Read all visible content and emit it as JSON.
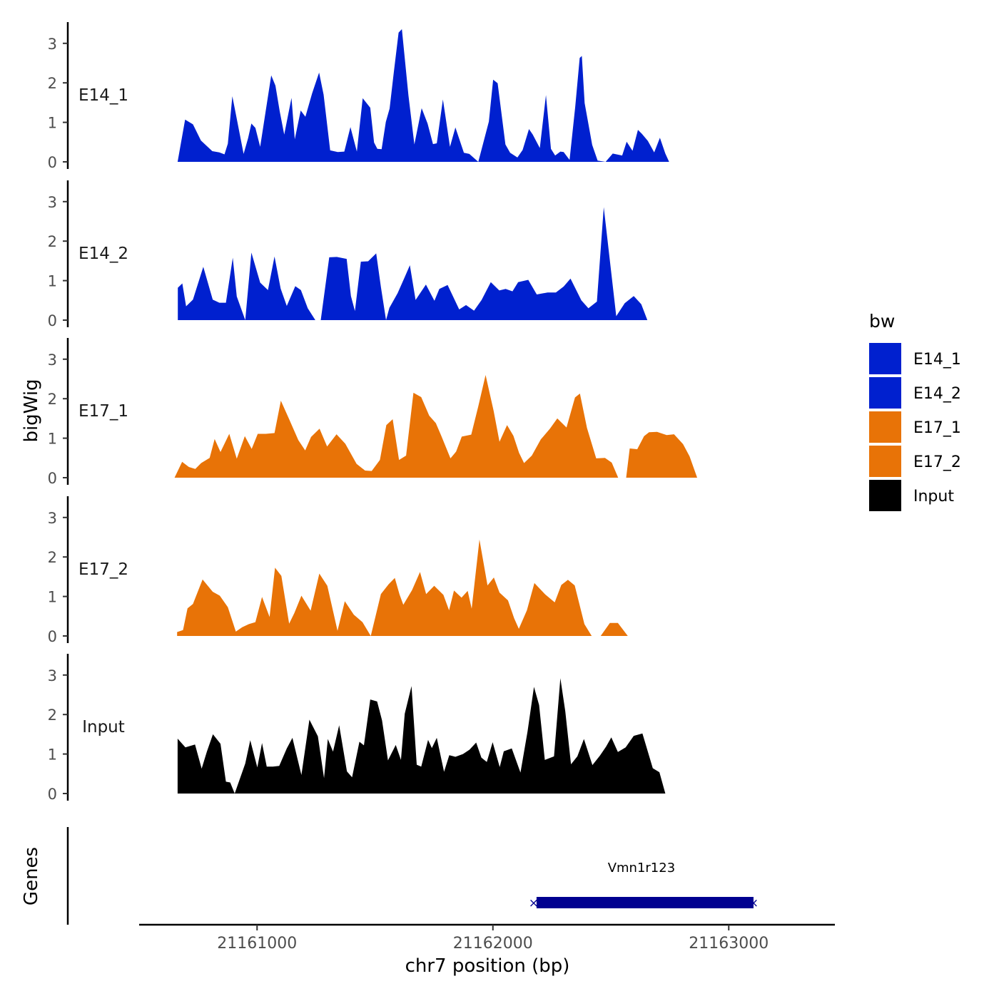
{
  "colors": {
    "E14": "#0020CF",
    "E17": "#E87307",
    "Input": "#000000",
    "gene": "#000090",
    "axis": "#000000",
    "tick_label": "#4D4D4D"
  },
  "chart_data": {
    "type": "area",
    "title": "",
    "ylabel": "bigWig",
    "xlabel": "chr7 position (bp)",
    "xlim": [
      21160500,
      21163450
    ],
    "ylim": [
      0,
      3.5
    ],
    "yticks": [
      0,
      1,
      2,
      3
    ],
    "ytick_labels": [
      "0",
      "1",
      "2",
      "3"
    ],
    "xticks": [
      21161000,
      21162000,
      21163000
    ],
    "xtick_labels": [
      "21161000",
      "21162000",
      "21163000"
    ],
    "legend": {
      "title": "bw",
      "position": "right",
      "entries": [
        {
          "label": "E14_1",
          "color": "#0020CF"
        },
        {
          "label": "E14_2",
          "color": "#0020CF"
        },
        {
          "label": "E17_1",
          "color": "#E87307"
        },
        {
          "label": "E17_2",
          "color": "#E87307"
        },
        {
          "label": "Input",
          "color": "#000000"
        }
      ]
    },
    "series": [
      {
        "name": "E14_1",
        "color": "#0020CF",
        "x": [
          21160663,
          21160695,
          21160728,
          21160762,
          21160810,
          21160840,
          21160862,
          21160876,
          21160895,
          21160914,
          21160943,
          21160962,
          21160976,
          21160993,
          21161013,
          21161031,
          21161060,
          21161078,
          21161096,
          21161115,
          21161146,
          21161160,
          21161185,
          21161205,
          21161233,
          21161263,
          21161282,
          21161310,
          21161342,
          21161370,
          21161396,
          21161423,
          21161448,
          21161480,
          21161496,
          21161510,
          21161528,
          21161546,
          21161562,
          21161580,
          21161600,
          21161614,
          21161642,
          21161667,
          21161698,
          21161723,
          21161746,
          21161762,
          21161788,
          21161818,
          21161841,
          21161877,
          21161900,
          21161938,
          21161983,
          21162001,
          21162020,
          21162053,
          21162073,
          21162104,
          21162126,
          21162153,
          21162169,
          21162199,
          21162225,
          21162246,
          21162264,
          21162286,
          21162300,
          21162325,
          21162349,
          21162368,
          21162377,
          21162389,
          21162421,
          21162444,
          21162478,
          21162508,
          21162548,
          21162567,
          21162592,
          21162615,
          21162632,
          21162657,
          21162684,
          21162708,
          21162731,
          21162747,
          21162775,
          21162787,
          21162806,
          21162833,
          21162856,
          21162872,
          21162885,
          21162900,
          21162934,
          21162962,
          21162998,
          21163022,
          21163044
        ],
        "values": [
          0.0,
          1.07,
          0.95,
          0.54,
          0.27,
          0.24,
          0.19,
          0.46,
          1.66,
          1.09,
          0.2,
          0.6,
          0.97,
          0.86,
          0.38,
          1.07,
          2.19,
          1.93,
          1.28,
          0.69,
          1.62,
          0.57,
          1.3,
          1.14,
          1.73,
          2.26,
          1.7,
          0.29,
          0.25,
          0.26,
          0.88,
          0.26,
          1.61,
          1.37,
          0.49,
          0.33,
          0.32,
          1.01,
          1.35,
          2.27,
          3.27,
          3.36,
          1.68,
          0.44,
          1.36,
          0.97,
          0.45,
          0.47,
          1.58,
          0.38,
          0.87,
          0.23,
          0.2,
          0.0,
          1.02,
          2.08,
          1.99,
          0.44,
          0.23,
          0.11,
          0.3,
          0.83,
          0.69,
          0.35,
          1.69,
          0.33,
          0.16,
          0.26,
          0.25,
          0.05,
          1.39,
          2.63,
          2.68,
          1.49,
          0.43,
          0.03,
          0.0,
          0.21,
          0.16,
          0.51,
          0.28,
          0.81,
          0.71,
          0.53,
          0.24,
          0.61,
          0.21,
          0.0,
          0.0,
          0.0,
          0.0,
          0.0,
          0.0,
          0.0,
          0.0,
          0.0,
          0.0,
          0.0,
          0.0,
          0.0,
          0.0
        ]
      },
      {
        "name": "E14_2",
        "color": "#0020CF",
        "x": [
          21160664,
          21160683,
          21160699,
          21160728,
          21160772,
          21160812,
          21160840,
          21160868,
          21160897,
          21160914,
          21160950,
          21160976,
          21161013,
          21161046,
          21161074,
          21161100,
          21161126,
          21161162,
          21161186,
          21161215,
          21161247,
          21161270,
          21161306,
          21161338,
          21161380,
          21161398,
          21161415,
          21161440,
          21161471,
          21161505,
          21161525,
          21161547,
          21161561,
          21161596,
          21161626,
          21161648,
          21161672,
          21161716,
          21161752,
          21161773,
          21161808,
          21161857,
          21161886,
          21161920,
          21161952,
          21161991,
          21162027,
          21162054,
          21162083,
          21162107,
          21162150,
          21162186,
          21162232,
          21162267,
          21162300,
          21162329,
          21162375,
          21162405,
          21162441,
          21162470,
          21162523,
          21162559,
          21162597,
          21162629,
          21162655,
          21162695,
          21162714,
          21162748,
          21162770,
          21162797,
          21162826,
          21162863,
          21162902,
          21162946,
          21162985,
          21163009,
          21163040
        ],
        "values": [
          0.82,
          0.93,
          0.35,
          0.52,
          1.35,
          0.52,
          0.44,
          0.44,
          1.58,
          0.6,
          0.0,
          1.71,
          0.95,
          0.76,
          1.61,
          0.8,
          0.36,
          0.86,
          0.76,
          0.3,
          0.0,
          0.0,
          1.59,
          1.6,
          1.55,
          0.61,
          0.23,
          1.48,
          1.49,
          1.69,
          0.84,
          0.0,
          0.31,
          0.68,
          1.09,
          1.39,
          0.51,
          0.9,
          0.49,
          0.79,
          0.89,
          0.27,
          0.38,
          0.24,
          0.51,
          0.96,
          0.75,
          0.79,
          0.73,
          0.96,
          1.02,
          0.65,
          0.7,
          0.7,
          0.85,
          1.05,
          0.5,
          0.3,
          0.47,
          2.86,
          0.1,
          0.43,
          0.61,
          0.4,
          0.0,
          0.0,
          0.0,
          0.0,
          0.0,
          0.0,
          0.0,
          0.0,
          0.0,
          0.0,
          0.0,
          0.0,
          0.0
        ]
      },
      {
        "name": "E17_1",
        "color": "#E87307",
        "x": [
          21160650,
          21160682,
          21160711,
          21160738,
          21160763,
          21160799,
          21160820,
          21160845,
          21160882,
          21160914,
          21160948,
          21160977,
          21161003,
          21161037,
          21161074,
          21161101,
          21161137,
          21161175,
          21161204,
          21161229,
          21161265,
          21161297,
          21161337,
          21161374,
          21161422,
          21161458,
          21161486,
          21161521,
          21161548,
          21161575,
          21161602,
          21161632,
          21161663,
          21161696,
          21161730,
          21161758,
          21161781,
          21161820,
          21161844,
          21161868,
          21161908,
          21161938,
          21161969,
          21162003,
          21162028,
          21162060,
          21162087,
          21162111,
          21162132,
          21162165,
          21162203,
          21162242,
          21162273,
          21162312,
          21162348,
          21162369,
          21162399,
          21162438,
          21162475,
          21162504,
          21162531,
          21162565,
          21162580,
          21162612,
          21162641,
          21162662,
          21162696,
          21162737,
          21162768,
          21162806,
          21162834,
          21162866,
          21162900,
          21162950,
          21162992,
          21163021,
          21163044
        ],
        "values": [
          0.0,
          0.4,
          0.27,
          0.22,
          0.37,
          0.5,
          0.98,
          0.65,
          1.11,
          0.48,
          1.05,
          0.73,
          1.11,
          1.11,
          1.13,
          1.95,
          1.47,
          0.95,
          0.69,
          1.03,
          1.24,
          0.79,
          1.1,
          0.86,
          0.35,
          0.18,
          0.17,
          0.45,
          1.33,
          1.48,
          0.45,
          0.56,
          2.15,
          2.04,
          1.57,
          1.38,
          1.06,
          0.49,
          0.66,
          1.04,
          1.09,
          1.81,
          2.6,
          1.69,
          0.91,
          1.33,
          1.06,
          0.63,
          0.37,
          0.56,
          0.97,
          1.24,
          1.5,
          1.27,
          2.03,
          2.13,
          1.26,
          0.49,
          0.5,
          0.38,
          0.0,
          0.0,
          0.74,
          0.72,
          1.05,
          1.15,
          1.16,
          1.08,
          1.1,
          0.85,
          0.54,
          0.0,
          0.0,
          0.0,
          0.0,
          0.0,
          0.0
        ]
      },
      {
        "name": "E17_2",
        "color": "#E87307",
        "x": [
          21160661,
          21160686,
          21160705,
          21160728,
          21160769,
          21160812,
          21160842,
          21160876,
          21160910,
          21160937,
          21160965,
          21160993,
          21161021,
          21161053,
          21161076,
          21161103,
          21161136,
          21161158,
          21161188,
          21161227,
          21161264,
          21161298,
          21161341,
          21161372,
          21161410,
          21161447,
          21161482,
          21161525,
          21161558,
          21161584,
          21161604,
          21161620,
          21161657,
          21161691,
          21161717,
          21161751,
          21161790,
          21161814,
          21161835,
          21161867,
          21161893,
          21161910,
          21161943,
          21161977,
          21162004,
          21162028,
          21162064,
          21162090,
          21162110,
          21162144,
          21162176,
          21162222,
          21162262,
          21162290,
          21162318,
          21162347,
          21162388,
          21162419,
          21162457,
          21162496,
          21162530,
          21162572,
          21162606,
          21162631,
          21162655,
          21162679,
          21162706,
          21162735,
          21162758,
          21162802,
          21162834,
          21162867,
          21162920,
          21162960,
          21162999,
          21163022,
          21163046
        ],
        "values": [
          0.1,
          0.15,
          0.7,
          0.81,
          1.43,
          1.12,
          1.02,
          0.73,
          0.11,
          0.22,
          0.3,
          0.35,
          0.99,
          0.48,
          1.73,
          1.52,
          0.31,
          0.58,
          1.02,
          0.64,
          1.58,
          1.27,
          0.13,
          0.88,
          0.54,
          0.35,
          0.0,
          1.06,
          1.31,
          1.47,
          1.05,
          0.79,
          1.16,
          1.62,
          1.06,
          1.27,
          1.04,
          0.65,
          1.15,
          0.97,
          1.14,
          0.69,
          2.44,
          1.28,
          1.48,
          1.1,
          0.9,
          0.45,
          0.18,
          0.65,
          1.34,
          1.05,
          0.85,
          1.29,
          1.42,
          1.28,
          0.3,
          0.0,
          0.0,
          0.33,
          0.33,
          0.0,
          0.0,
          0.0,
          0.0,
          0.0,
          0.0,
          0.0,
          0.0,
          0.0,
          0.0,
          0.0,
          0.0,
          0.0,
          0.0,
          0.0,
          0.0
        ]
      },
      {
        "name": "Input",
        "color": "#000000",
        "x": [
          21160663,
          21160696,
          21160737,
          21160765,
          21160787,
          21160813,
          21160845,
          21160868,
          21160886,
          21160905,
          21160950,
          21160971,
          21161001,
          21161021,
          21161041,
          21161067,
          21161094,
          21161126,
          21161150,
          21161188,
          21161222,
          21161258,
          21161284,
          21161300,
          21161322,
          21161348,
          21161381,
          21161403,
          21161434,
          21161453,
          21161480,
          21161509,
          21161530,
          21161555,
          21161588,
          21161610,
          21161626,
          21161655,
          21161677,
          21161696,
          21161725,
          21161741,
          21161762,
          21161793,
          21161815,
          21161841,
          21161873,
          21161901,
          21161929,
          21161951,
          21161974,
          21161999,
          21162029,
          21162046,
          21162080,
          21162117,
          21162147,
          21162174,
          21162196,
          21162220,
          21162259,
          21162286,
          21162307,
          21162331,
          21162358,
          21162386,
          21162422,
          21162454,
          21162480,
          21162502,
          21162530,
          21162563,
          21162597,
          21162634,
          21162678,
          21162706,
          21162731,
          21162769,
          21162796,
          21162816,
          21162845,
          21162876,
          21162899,
          21162928,
          21162957,
          21162996,
          21163015,
          21163044
        ],
        "values": [
          1.39,
          1.17,
          1.24,
          0.63,
          1.06,
          1.5,
          1.26,
          0.3,
          0.28,
          0.0,
          0.76,
          1.35,
          0.66,
          1.28,
          0.68,
          0.68,
          0.7,
          1.14,
          1.41,
          0.47,
          1.87,
          1.45,
          0.39,
          1.38,
          1.06,
          1.73,
          0.56,
          0.41,
          1.31,
          1.22,
          2.38,
          2.33,
          1.85,
          0.84,
          1.23,
          0.85,
          2.02,
          2.72,
          0.73,
          0.68,
          1.36,
          1.15,
          1.41,
          0.55,
          0.97,
          0.93,
          1.0,
          1.11,
          1.29,
          0.91,
          0.8,
          1.3,
          0.67,
          1.07,
          1.14,
          0.53,
          1.57,
          2.7,
          2.24,
          0.85,
          0.94,
          2.92,
          2.08,
          0.74,
          0.94,
          1.38,
          0.72,
          0.96,
          1.19,
          1.42,
          1.05,
          1.17,
          1.46,
          1.52,
          0.64,
          0.54,
          0.0,
          0.0,
          0.0,
          0.0,
          0.0,
          0.0,
          0.0,
          0.0,
          0.0,
          0.0,
          0.0,
          0.0
        ]
      }
    ],
    "genes": {
      "label": "Genes",
      "items": [
        {
          "name": "Vmn1r123",
          "start": 21162185,
          "end": 21163105
        }
      ]
    }
  }
}
